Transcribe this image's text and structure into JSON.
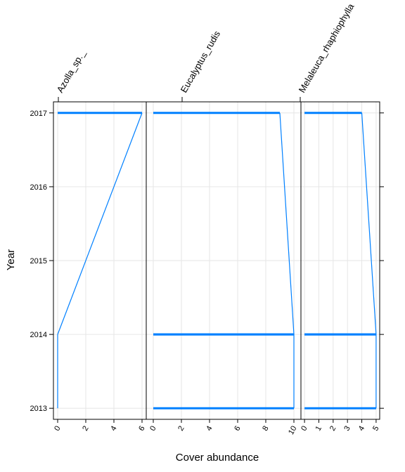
{
  "chart_data": {
    "type": "line",
    "xlabel": "Cover abundance",
    "ylabel": "Year",
    "y_ticks": [
      "2013",
      "2014",
      "2015",
      "2016",
      "2017"
    ],
    "ylim": [
      2017.15,
      2012.85
    ],
    "grid": true,
    "line_color": "#0080ff",
    "panels": [
      {
        "name": "Azolla_sp._",
        "xlim": [
          -0.3,
          6.3
        ],
        "x_ticks": [
          0,
          2,
          4,
          6
        ],
        "points": [
          [
            0,
            2013
          ],
          [
            0,
            2014
          ],
          [
            6,
            2017
          ],
          [
            0,
            2017
          ]
        ]
      },
      {
        "name": "Eucalyptus_rudis",
        "xlim": [
          -0.5,
          10.5
        ],
        "x_ticks": [
          0,
          2,
          4,
          6,
          8,
          10
        ],
        "points": [
          [
            0,
            2013
          ],
          [
            10,
            2013
          ],
          [
            10,
            2014
          ],
          [
            0,
            2014
          ],
          [
            10,
            2014
          ],
          [
            9,
            2017
          ],
          [
            0,
            2017
          ]
        ]
      },
      {
        "name": "Melaleuca_rhaphiophylla",
        "xlim": [
          -0.25,
          5.25
        ],
        "x_ticks": [
          0,
          1,
          2,
          3,
          4,
          5
        ],
        "points": [
          [
            0,
            2013
          ],
          [
            5,
            2013
          ],
          [
            5,
            2014
          ],
          [
            0,
            2014
          ],
          [
            5,
            2014
          ],
          [
            4,
            2017
          ],
          [
            0,
            2017
          ]
        ]
      }
    ]
  }
}
